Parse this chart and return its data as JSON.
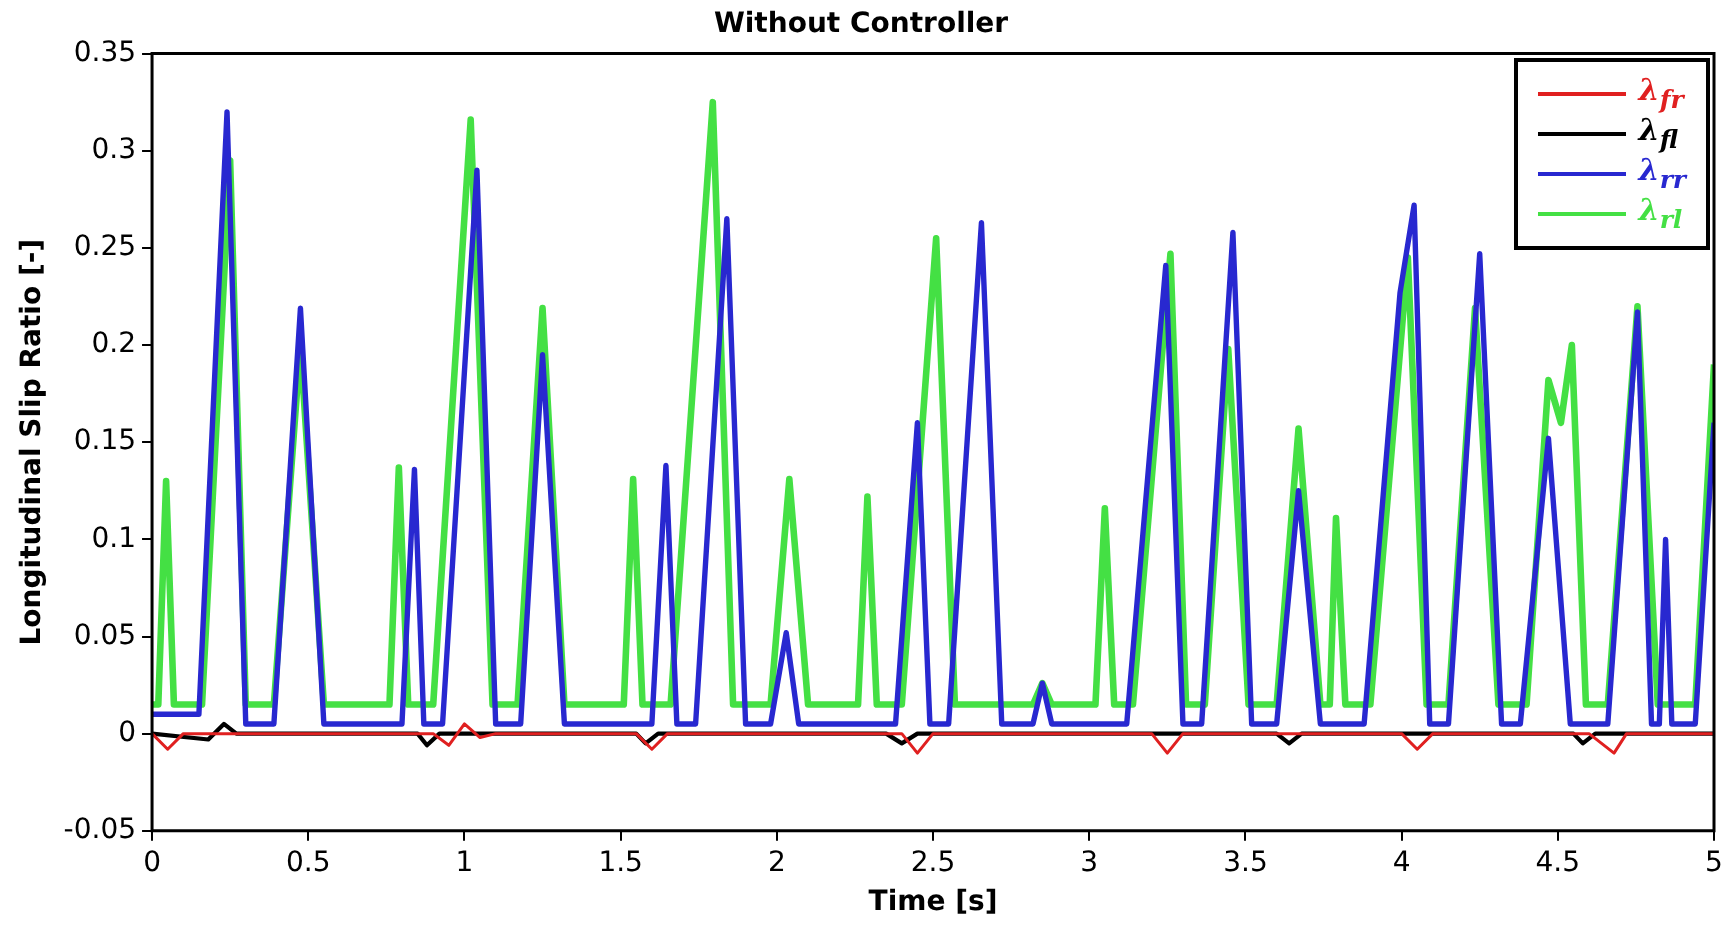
{
  "chart_data": {
    "type": "line",
    "title": "Without Controller",
    "xlabel": "Time [s]",
    "ylabel": "Longitudinal Slip Ratio [-]",
    "xlim": [
      0,
      5
    ],
    "xticks": [
      0,
      0.5,
      1,
      1.5,
      2,
      2.5,
      3,
      3.5,
      4,
      4.5,
      5
    ],
    "ylim": [
      -0.05,
      0.35
    ],
    "yticks": [
      -0.05,
      0,
      0.05,
      0.1,
      0.15,
      0.2,
      0.25,
      0.3,
      0.35
    ],
    "grid": false,
    "legend": "top right",
    "marker": "none",
    "line_style": "solid",
    "series": [
      {
        "name": "λ$_{fr}$",
        "color": "#e02020",
        "x": [
          0,
          0.05,
          0.1,
          0.9,
          0.95,
          1.0,
          1.05,
          1.1,
          1.55,
          1.6,
          1.65,
          2.4,
          2.45,
          2.5,
          3.2,
          3.25,
          3.3,
          4.0,
          4.05,
          4.1,
          4.6,
          4.68,
          4.72,
          5
        ],
        "values": [
          0,
          -0.008,
          0,
          0,
          -0.006,
          0.005,
          -0.002,
          0,
          0,
          -0.008,
          0,
          0,
          -0.01,
          0,
          0,
          -0.01,
          0,
          0,
          -0.008,
          0,
          0,
          -0.01,
          0,
          0
        ]
      },
      {
        "name": "λ$_{fl}$",
        "color": "#000000",
        "x": [
          0,
          0.18,
          0.23,
          0.27,
          0.85,
          0.88,
          0.92,
          1.55,
          1.58,
          1.62,
          2.35,
          2.4,
          2.45,
          3.6,
          3.64,
          3.68,
          4.55,
          4.58,
          4.62,
          5
        ],
        "values": [
          0,
          -0.003,
          0.005,
          0,
          0,
          -0.006,
          0,
          0,
          -0.005,
          0,
          0,
          -0.005,
          0,
          0,
          -0.005,
          0,
          0,
          -0.005,
          0,
          0
        ]
      },
      {
        "name": "λ$_{rr}$",
        "color": "#2828d0",
        "x": [
          0,
          0.15,
          0.24,
          0.3,
          0.39,
          0.475,
          0.55,
          0.8,
          0.84,
          0.87,
          0.93,
          1.04,
          1.1,
          1.18,
          1.25,
          1.32,
          1.6,
          1.645,
          1.68,
          1.74,
          1.84,
          1.9,
          1.98,
          2.03,
          2.07,
          2.38,
          2.45,
          2.49,
          2.55,
          2.655,
          2.72,
          2.82,
          2.85,
          2.88,
          3.12,
          3.245,
          3.3,
          3.36,
          3.46,
          3.52,
          3.6,
          3.67,
          3.74,
          3.88,
          3.995,
          4.04,
          4.09,
          4.15,
          4.25,
          4.32,
          4.38,
          4.47,
          4.54,
          4.66,
          4.755,
          4.8,
          4.825,
          4.845,
          4.865,
          4.94,
          5
        ],
        "values": [
          0.01,
          0.01,
          0.32,
          0.005,
          0.005,
          0.219,
          0.005,
          0.005,
          0.136,
          0.005,
          0.005,
          0.29,
          0.005,
          0.005,
          0.195,
          0.005,
          0.005,
          0.138,
          0.005,
          0.005,
          0.265,
          0.005,
          0.005,
          0.052,
          0.005,
          0.005,
          0.16,
          0.005,
          0.005,
          0.263,
          0.005,
          0.005,
          0.026,
          0.005,
          0.005,
          0.241,
          0.005,
          0.005,
          0.258,
          0.005,
          0.005,
          0.125,
          0.005,
          0.005,
          0.227,
          0.272,
          0.005,
          0.005,
          0.247,
          0.005,
          0.005,
          0.152,
          0.005,
          0.005,
          0.217,
          0.005,
          0.005,
          0.1,
          0.005,
          0.005,
          0.16
        ]
      },
      {
        "name": "λ$_{rl}$",
        "color": "#44e044",
        "x": [
          0,
          0.02,
          0.045,
          0.07,
          0.16,
          0.25,
          0.3,
          0.39,
          0.475,
          0.55,
          0.76,
          0.79,
          0.82,
          0.9,
          1.02,
          1.09,
          1.17,
          1.25,
          1.32,
          1.51,
          1.54,
          1.57,
          1.66,
          1.795,
          1.86,
          1.98,
          2.04,
          2.1,
          2.26,
          2.29,
          2.32,
          2.4,
          2.51,
          2.57,
          2.82,
          2.85,
          2.88,
          3.02,
          3.05,
          3.08,
          3.14,
          3.26,
          3.31,
          3.37,
          3.445,
          3.51,
          3.6,
          3.67,
          3.74,
          3.77,
          3.79,
          3.82,
          3.9,
          4.02,
          4.08,
          4.15,
          4.235,
          4.31,
          4.4,
          4.47,
          4.51,
          4.545,
          4.59,
          4.66,
          4.755,
          4.82,
          4.94,
          5
        ],
        "values": [
          0.015,
          0.015,
          0.13,
          0.015,
          0.015,
          0.295,
          0.015,
          0.015,
          0.2,
          0.015,
          0.015,
          0.137,
          0.015,
          0.015,
          0.316,
          0.015,
          0.015,
          0.219,
          0.015,
          0.015,
          0.131,
          0.015,
          0.015,
          0.325,
          0.015,
          0.015,
          0.131,
          0.015,
          0.015,
          0.122,
          0.015,
          0.015,
          0.255,
          0.015,
          0.015,
          0.026,
          0.015,
          0.015,
          0.116,
          0.015,
          0.015,
          0.247,
          0.015,
          0.015,
          0.198,
          0.015,
          0.015,
          0.157,
          0.015,
          0.015,
          0.111,
          0.015,
          0.015,
          0.245,
          0.015,
          0.015,
          0.219,
          0.015,
          0.015,
          0.182,
          0.16,
          0.2,
          0.015,
          0.015,
          0.22,
          0.015,
          0.015,
          0.19
        ]
      }
    ]
  }
}
